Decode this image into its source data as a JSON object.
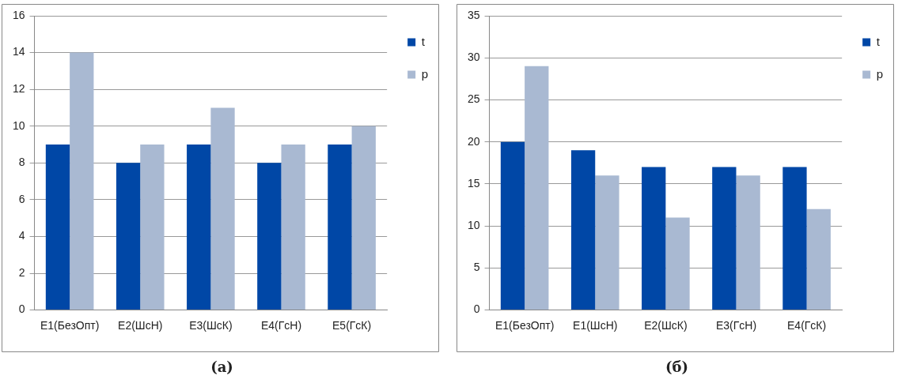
{
  "chart_data": [
    {
      "type": "bar",
      "title": "(а)",
      "categories": [
        "E1(БезОпт)",
        "E2(ШсН)",
        "E3(ШсК)",
        "E4(ГсН)",
        "E5(ГсК)"
      ],
      "series": [
        {
          "name": "t",
          "color": "#0047a6",
          "values": [
            9,
            8,
            9,
            8,
            9
          ]
        },
        {
          "name": "p",
          "color": "#a9b9d2",
          "values": [
            14,
            9,
            11,
            9,
            10
          ]
        }
      ],
      "ylim": [
        0,
        16
      ],
      "yticks": [
        0,
        2,
        4,
        6,
        8,
        10,
        12,
        14,
        16
      ],
      "grid": "y",
      "legend": "top right"
    },
    {
      "type": "bar",
      "title": "(б)",
      "categories": [
        "E1(БезОпт)",
        "E1(ШсН)",
        "E2(ШсК)",
        "E3(ГсН)",
        "E4(ГсК)"
      ],
      "series": [
        {
          "name": "t",
          "color": "#0047a6",
          "values": [
            20,
            19,
            17,
            17,
            17
          ]
        },
        {
          "name": "p",
          "color": "#a9b9d2",
          "values": [
            29,
            16,
            11,
            16,
            12
          ]
        }
      ],
      "ylim": [
        0,
        35
      ],
      "yticks": [
        0,
        5,
        10,
        15,
        20,
        25,
        30,
        35
      ],
      "grid": "y",
      "legend": "top right"
    }
  ]
}
